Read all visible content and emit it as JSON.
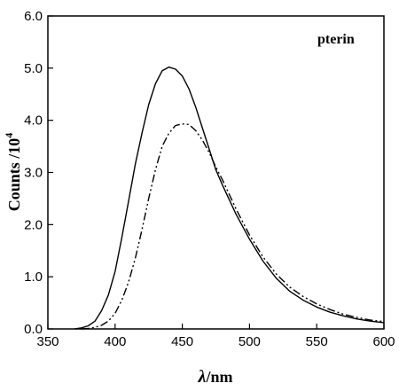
{
  "chart_data": {
    "type": "line",
    "annotation": "pterin",
    "xlabel": {
      "symbol": "λ",
      "unit": "/nm"
    },
    "ylabel": {
      "text": "Counts /10",
      "exponent": "4"
    },
    "xlim": [
      350,
      600
    ],
    "ylim": [
      0,
      6
    ],
    "xticks": [
      "350",
      "400",
      "450",
      "500",
      "550",
      "600"
    ],
    "yticks": [
      "0.0",
      "1.0",
      "2.0",
      "3.0",
      "4.0",
      "5.0",
      "6.0"
    ],
    "grid": false,
    "legend": "none",
    "series": [
      {
        "style": "solid",
        "x": [
          370,
          375,
          380,
          385,
          390,
          395,
          400,
          405,
          410,
          415,
          420,
          425,
          430,
          435,
          440,
          445,
          450,
          455,
          460,
          465,
          470,
          475,
          480,
          490,
          500,
          510,
          520,
          530,
          540,
          550,
          560,
          570,
          580,
          590,
          600
        ],
        "y": [
          0.0,
          0.02,
          0.06,
          0.15,
          0.35,
          0.65,
          1.1,
          1.75,
          2.45,
          3.15,
          3.75,
          4.3,
          4.7,
          4.95,
          5.02,
          4.98,
          4.85,
          4.6,
          4.25,
          3.85,
          3.45,
          3.05,
          2.75,
          2.2,
          1.72,
          1.3,
          0.97,
          0.72,
          0.55,
          0.42,
          0.32,
          0.25,
          0.19,
          0.15,
          0.12
        ]
      },
      {
        "style": "dash-dot-dot",
        "x": [
          375,
          380,
          385,
          390,
          395,
          400,
          405,
          410,
          415,
          420,
          425,
          430,
          435,
          440,
          445,
          450,
          455,
          460,
          465,
          470,
          475,
          480,
          490,
          500,
          510,
          520,
          530,
          540,
          550,
          560,
          570,
          580,
          590,
          600
        ],
        "y": [
          0.0,
          0.01,
          0.03,
          0.07,
          0.15,
          0.3,
          0.55,
          0.9,
          1.35,
          1.9,
          2.5,
          3.05,
          3.5,
          3.75,
          3.9,
          3.93,
          3.92,
          3.8,
          3.62,
          3.38,
          3.1,
          2.85,
          2.3,
          1.8,
          1.38,
          1.05,
          0.8,
          0.62,
          0.48,
          0.37,
          0.28,
          0.22,
          0.17,
          0.14
        ]
      }
    ]
  }
}
